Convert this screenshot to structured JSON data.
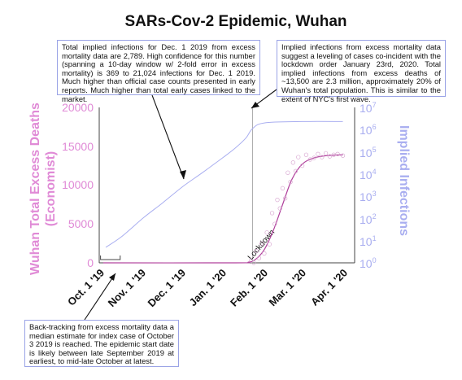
{
  "chart_data": {
    "type": "line",
    "title": "SARs-Cov-2 Epidemic, Wuhan",
    "ylabel_left": [
      "Wuhan Total Excess Deaths",
      "(Economist)"
    ],
    "ylabel_right": "Implied Infections",
    "x_ticks": [
      "Oct. 1 '19",
      "Nov. 1 '19",
      "Dec. 1 '19",
      "Jan. 1 '20",
      "Feb. 1 '20",
      "Mar. 1 '20",
      "Apr. 1 '20"
    ],
    "x_tick_dates": [
      "2019-10-01",
      "2019-11-01",
      "2019-12-01",
      "2020-01-01",
      "2020-02-01",
      "2020-03-01",
      "2020-04-01"
    ],
    "xlim": [
      "2019-09-28",
      "2020-04-10"
    ],
    "ylim_left": [
      0,
      20000
    ],
    "y_ticks_left": [
      "0",
      "5000",
      "10000",
      "15000",
      "20000"
    ],
    "y_ticks_left_values": [
      0,
      5000,
      10000,
      15000,
      20000
    ],
    "ylim_right_log10": [
      0,
      7
    ],
    "y_ticks_right": [
      {
        "base": "10",
        "exp": "0"
      },
      {
        "base": "10",
        "exp": "1"
      },
      {
        "base": "10",
        "exp": "2"
      },
      {
        "base": "10",
        "exp": "3"
      },
      {
        "base": "10",
        "exp": "4"
      },
      {
        "base": "10",
        "exp": "5"
      },
      {
        "base": "10",
        "exp": "6"
      },
      {
        "base": "10",
        "exp": "7"
      }
    ],
    "y_right_scale": "log",
    "lockdown_date": "2020-01-23",
    "lockdown_label": "Lockdown",
    "index_case_range": [
      "2019-09-29",
      "2019-10-14"
    ],
    "series": [
      {
        "axis": "right",
        "color": "#a9aef0",
        "x": [
          "2019-10-03",
          "2019-10-15",
          "2019-11-01",
          "2019-11-15",
          "2019-12-01",
          "2019-12-15",
          "2020-01-01",
          "2020-01-10",
          "2020-01-18",
          "2020-01-23",
          "2020-02-01",
          "2020-03-01",
          "2020-04-01"
        ],
        "y": [
          5,
          15,
          110,
          480,
          2789,
          10700,
          58000,
          150000,
          420000,
          1100000,
          2000000,
          2300000,
          2300000
        ]
      },
      {
        "axis": "left",
        "color": "#b0409c",
        "x": [
          "2019-10-01",
          "2020-01-10",
          "2020-01-20",
          "2020-01-25",
          "2020-02-01",
          "2020-02-08",
          "2020-02-15",
          "2020-02-22",
          "2020-03-01",
          "2020-03-10",
          "2020-03-20",
          "2020-04-01"
        ],
        "y": [
          0,
          0,
          100,
          400,
          1700,
          4200,
          7500,
          10700,
          12700,
          13500,
          13800,
          13900
        ]
      },
      {
        "axis": "left",
        "color": "#d9a9d2",
        "style": "scatter",
        "x": [
          "2020-01-22",
          "2020-01-24",
          "2020-01-26",
          "2020-01-28",
          "2020-01-30",
          "2020-02-01",
          "2020-02-03",
          "2020-02-05",
          "2020-02-07",
          "2020-02-09",
          "2020-02-11",
          "2020-02-13",
          "2020-02-15",
          "2020-02-17",
          "2020-02-19",
          "2020-02-21",
          "2020-02-23",
          "2020-02-25",
          "2020-02-27",
          "2020-03-01",
          "2020-03-04",
          "2020-03-07",
          "2020-03-10",
          "2020-03-13",
          "2020-03-16",
          "2020-03-19",
          "2020-03-22",
          "2020-03-25",
          "2020-03-28",
          "2020-04-01"
        ],
        "y": [
          300,
          0,
          1500,
          600,
          2500,
          1200,
          3900,
          2400,
          6400,
          5000,
          8100,
          7000,
          9600,
          8300,
          11600,
          10400,
          12900,
          11800,
          13600,
          12500,
          13900,
          13300,
          13500,
          14000,
          13600,
          14100,
          13700,
          13900,
          14000,
          13800
        ]
      }
    ]
  },
  "annotations": {
    "left": "Total implied infections for Dec. 1 2019 from excess mortality data are 2,789. High confidence for this number (spanning a 10-day window w/ 2-fold error in excess mortality) is 369 to 21,024 infections for Dec. 1 2019. Much higher than official case counts presented in early reports. Much higher than total early cases linked to the market.",
    "right": "Implied infections from excess mortality data suggest a leveling of cases co-incident with the lockdown order January 23rd, 2020. Total implied infections from excess deaths of ~13,500 are 2.3 million, approximately 20% of Wuhan's total population. This is similar to the extent of NYC's first wave.",
    "bottom": "Back-tracking from excess mortality data a median estimate for index case of October 3 2019 is reached. The epidemic start date is likely between late September 2019 at earliest, to mid-late October at latest."
  },
  "colors": {
    "left_axis": "#e08ad6",
    "right_axis": "#a9aef0",
    "annotation_border": "#9aa3e6",
    "arrow": "#111111"
  }
}
